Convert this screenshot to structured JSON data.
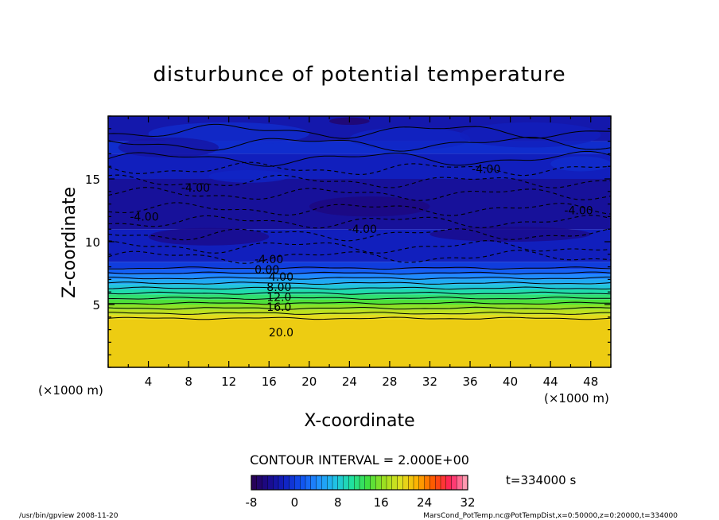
{
  "chart_data": {
    "type": "heatmap",
    "title": "disturbunce of potential temperature",
    "xlabel": "X-coordinate",
    "ylabel": "Z-coordinate",
    "x_unit_left": "(×1000 m)",
    "x_unit_right": "(×1000 m)",
    "xlim": [
      0,
      50
    ],
    "ylim": [
      0,
      20
    ],
    "x_ticks": [
      4,
      8,
      12,
      16,
      20,
      24,
      28,
      32,
      36,
      40,
      44,
      48
    ],
    "y_ticks": [
      5,
      10,
      15
    ],
    "contour_interval_text": "CONTOUR INTERVAL = 2.000E+00",
    "time_label": "t=334000 s",
    "colorbar": {
      "min": -8,
      "max": 32,
      "ticks": [
        -8,
        0,
        8,
        16,
        24,
        32
      ],
      "colors": [
        "#2a0050",
        "#1a0a8a",
        "#1020c0",
        "#1050f0",
        "#2090ff",
        "#20c0e8",
        "#20e0a0",
        "#40e040",
        "#a0e020",
        "#e0e020",
        "#ffb000",
        "#ff5000",
        "#ff2060",
        "#ffb0c0"
      ]
    },
    "contour_labels": [
      {
        "text": "-4.00",
        "x": 8.7,
        "z": 14.3
      },
      {
        "text": "-4.00",
        "x": 3.6,
        "z": 12.0
      },
      {
        "text": "-4.00",
        "x": 37.6,
        "z": 15.8
      },
      {
        "text": "-4.00",
        "x": 46.8,
        "z": 12.5
      },
      {
        "text": "-4.00",
        "x": 25.3,
        "z": 11.0
      },
      {
        "text": "-4.00",
        "x": 16.0,
        "z": 8.6
      },
      {
        "text": "0.00",
        "x": 15.8,
        "z": 7.8
      },
      {
        "text": "4.00",
        "x": 17.2,
        "z": 7.2
      },
      {
        "text": "8.00",
        "x": 17.0,
        "z": 6.4
      },
      {
        "text": "12.0",
        "x": 17.0,
        "z": 5.6
      },
      {
        "text": "16.0",
        "x": 17.0,
        "z": 4.8
      },
      {
        "text": "20.0",
        "x": 17.2,
        "z": 2.8
      }
    ],
    "layers": [
      {
        "z": [
          0,
          3.8
        ],
        "value": 21
      },
      {
        "z": [
          3.8,
          4.2
        ],
        "value": 20
      },
      {
        "z": [
          4.2,
          4.6
        ],
        "value": 18
      },
      {
        "z": [
          4.6,
          5.0
        ],
        "value": 16
      },
      {
        "z": [
          5.0,
          5.4
        ],
        "value": 14
      },
      {
        "z": [
          5.4,
          5.8
        ],
        "value": 12
      },
      {
        "z": [
          5.8,
          6.2
        ],
        "value": 10
      },
      {
        "z": [
          6.2,
          6.6
        ],
        "value": 8
      },
      {
        "z": [
          6.6,
          7.0
        ],
        "value": 6
      },
      {
        "z": [
          7.0,
          7.4
        ],
        "value": 4
      },
      {
        "z": [
          7.4,
          7.8
        ],
        "value": 2
      },
      {
        "z": [
          7.8,
          8.4
        ],
        "value": 0
      },
      {
        "z": [
          8.4,
          11.0
        ],
        "value": -2
      },
      {
        "z": [
          11.0,
          15.0
        ],
        "value": -4
      },
      {
        "z": [
          15.0,
          17.0
        ],
        "value": -2
      },
      {
        "z": [
          17.0,
          18.0
        ],
        "value": -1
      },
      {
        "z": [
          18.0,
          20.0
        ],
        "value": -3
      }
    ]
  },
  "footer_left": "/usr/bin/gpview   2008-11-20",
  "footer_right": "MarsCond_PotTemp.nc@PotTempDist,x=0:50000,z=0:20000,t=334000"
}
